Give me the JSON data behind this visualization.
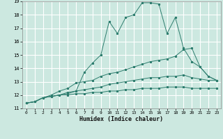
{
  "xlabel": "Humidex (Indice chaleur)",
  "bg_color": "#cce8e0",
  "grid_color": "#ffffff",
  "line_color": "#2d7d6e",
  "xlim": [
    -0.5,
    23.5
  ],
  "ylim": [
    11,
    19
  ],
  "xticks": [
    0,
    1,
    2,
    3,
    4,
    5,
    6,
    7,
    8,
    9,
    10,
    11,
    12,
    13,
    14,
    15,
    16,
    17,
    18,
    19,
    20,
    21,
    22,
    23
  ],
  "yticks": [
    11,
    12,
    13,
    14,
    15,
    16,
    17,
    18,
    19
  ],
  "line1_x": [
    0,
    1,
    2,
    3,
    4,
    5,
    6,
    7,
    8,
    9,
    10,
    11,
    12,
    13,
    14,
    15,
    16,
    17,
    18,
    19,
    20,
    21,
    22,
    23
  ],
  "line1_y": [
    11.4,
    11.5,
    11.8,
    11.9,
    12.0,
    12.2,
    12.3,
    13.7,
    14.4,
    15.0,
    17.5,
    16.6,
    17.8,
    18.0,
    18.9,
    18.9,
    18.8,
    16.6,
    17.8,
    15.5,
    14.5,
    14.1,
    13.4,
    13.1
  ],
  "line2_x": [
    0,
    1,
    2,
    3,
    4,
    5,
    6,
    7,
    8,
    9,
    10,
    11,
    12,
    13,
    14,
    15,
    16,
    17,
    18,
    19,
    20,
    21,
    22,
    23
  ],
  "line2_y": [
    11.4,
    11.5,
    11.8,
    12.0,
    12.3,
    12.5,
    12.9,
    13.0,
    13.1,
    13.4,
    13.6,
    13.7,
    13.9,
    14.1,
    14.3,
    14.5,
    14.6,
    14.7,
    14.9,
    15.4,
    15.5,
    14.1,
    13.4,
    13.1
  ],
  "line3_x": [
    0,
    1,
    2,
    3,
    4,
    5,
    6,
    7,
    8,
    9,
    10,
    11,
    12,
    13,
    14,
    15,
    16,
    17,
    18,
    19,
    20,
    21,
    22,
    23
  ],
  "line3_y": [
    11.4,
    11.5,
    11.8,
    11.9,
    12.0,
    12.1,
    12.3,
    12.4,
    12.5,
    12.6,
    12.8,
    12.9,
    13.0,
    13.1,
    13.2,
    13.3,
    13.3,
    13.4,
    13.4,
    13.5,
    13.3,
    13.2,
    13.1,
    13.1
  ],
  "line4_x": [
    0,
    1,
    2,
    3,
    4,
    5,
    6,
    7,
    8,
    9,
    10,
    11,
    12,
    13,
    14,
    15,
    16,
    17,
    18,
    19,
    20,
    21,
    22,
    23
  ],
  "line4_y": [
    11.4,
    11.5,
    11.8,
    11.9,
    12.0,
    12.0,
    12.1,
    12.1,
    12.2,
    12.2,
    12.3,
    12.3,
    12.4,
    12.4,
    12.5,
    12.5,
    12.5,
    12.6,
    12.6,
    12.6,
    12.5,
    12.5,
    12.5,
    12.5
  ]
}
